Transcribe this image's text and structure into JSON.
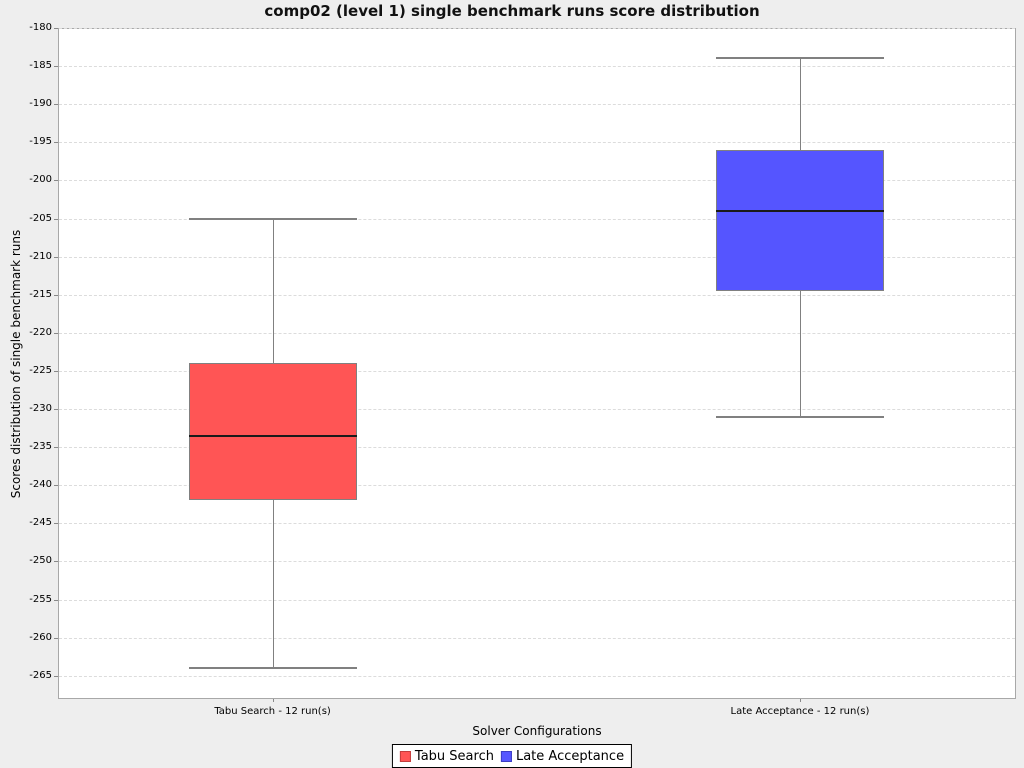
{
  "title": "comp02 (level 1) single benchmark runs score distribution",
  "y_axis": {
    "label": "Scores distribution of single benchmark runs"
  },
  "x_axis": {
    "label": "Solver Configurations"
  },
  "legend": {
    "items": [
      {
        "label": "Tabu Search",
        "color": "#ff5555",
        "border": "#c33d3d"
      },
      {
        "label": "Late Acceptance",
        "color": "#5555ff",
        "border": "#3d3dc3"
      }
    ]
  },
  "chart_data": {
    "type": "boxplot",
    "title": "comp02 (level 1) single benchmark runs score distribution",
    "xlabel": "Solver Configurations",
    "ylabel": "Scores distribution of single benchmark runs",
    "ylim": [
      -268,
      -180
    ],
    "y_ticks": [
      -180,
      -185,
      -190,
      -195,
      -200,
      -205,
      -210,
      -215,
      -220,
      -225,
      -230,
      -235,
      -240,
      -245,
      -250,
      -255,
      -260,
      -265
    ],
    "grid": true,
    "grid_style": "dashed",
    "legend_position": "bottom",
    "categories": [
      "Tabu Search - 12 run(s)",
      "Late Acceptance - 12 run(s)"
    ],
    "series": [
      {
        "name": "Tabu Search",
        "color": "#ff5555",
        "whisker_low": -264,
        "q1": -242,
        "median": -233.5,
        "q3": -224,
        "whisker_high": -205,
        "runs": 12
      },
      {
        "name": "Late Acceptance",
        "color": "#5555ff",
        "whisker_low": -231,
        "q1": -214.5,
        "median": -204,
        "q3": -196,
        "whisker_high": -184,
        "runs": 12
      }
    ]
  }
}
